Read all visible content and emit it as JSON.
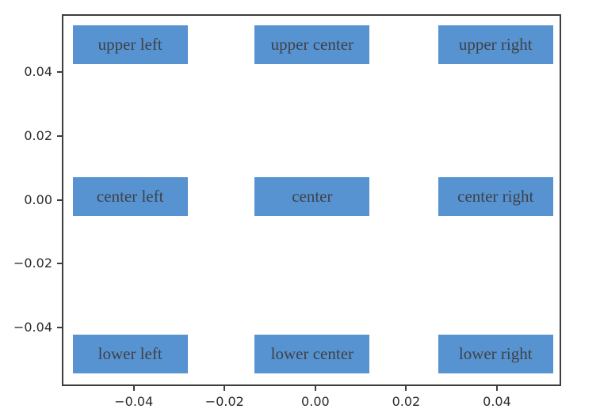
{
  "colors": {
    "background": "#ffffff",
    "frame": "#3d3d3d",
    "box_fill": "#5793d0",
    "box_text": "#3e424a",
    "tick_text": "#2b2b2b"
  },
  "chart_data": {
    "type": "scatter",
    "title": "",
    "xlabel": "",
    "ylabel": "",
    "grid": false,
    "legend": "none",
    "xlim": [
      -0.0555,
      0.0538
    ],
    "ylim": [
      -0.0577,
      0.0575
    ],
    "x_ticks": [
      {
        "value": -0.04,
        "label": "−0.04"
      },
      {
        "value": -0.02,
        "label": "−0.02"
      },
      {
        "value": 0.0,
        "label": "0.00"
      },
      {
        "value": 0.02,
        "label": "0.02"
      },
      {
        "value": 0.04,
        "label": "0.04"
      }
    ],
    "y_ticks": [
      {
        "value": 0.04,
        "label": "0.04"
      },
      {
        "value": 0.02,
        "label": "0.02"
      },
      {
        "value": 0.0,
        "label": "0.00"
      },
      {
        "value": -0.02,
        "label": "−0.02"
      },
      {
        "value": -0.04,
        "label": "−0.04"
      }
    ],
    "annotations": [
      {
        "label": "upper left",
        "position": "upper left",
        "x": -0.0408,
        "y": 0.0484
      },
      {
        "label": "upper center",
        "position": "upper center",
        "x": -0.0007,
        "y": 0.0484
      },
      {
        "label": "upper right",
        "position": "upper right",
        "x": 0.0397,
        "y": 0.0484
      },
      {
        "label": "center left",
        "position": "center left",
        "x": -0.0408,
        "y": 0.0011
      },
      {
        "label": "center",
        "position": "center",
        "x": -0.0007,
        "y": 0.0011
      },
      {
        "label": "center right",
        "position": "center right",
        "x": 0.0397,
        "y": 0.0011
      },
      {
        "label": "lower left",
        "position": "lower left",
        "x": -0.0408,
        "y": -0.0481
      },
      {
        "label": "lower center",
        "position": "lower center",
        "x": -0.0007,
        "y": -0.0481
      },
      {
        "label": "lower right",
        "position": "lower right",
        "x": 0.0397,
        "y": -0.0481
      }
    ]
  }
}
